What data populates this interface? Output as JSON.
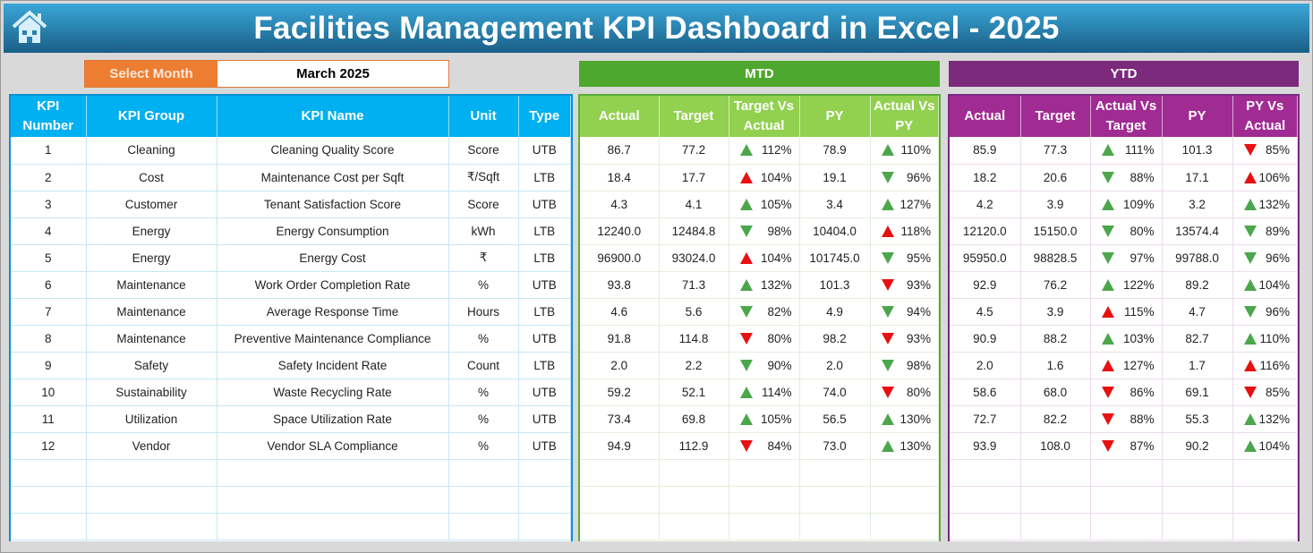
{
  "header": {
    "title": "Facilities Management KPI Dashboard in Excel - 2025",
    "home_icon": "home-icon"
  },
  "selector": {
    "label": "Select Month",
    "value": "March 2025"
  },
  "sections": {
    "mtd": "MTD",
    "ytd": "YTD"
  },
  "colors": {
    "kpi_header": "#00b0f0",
    "mtd": "#92d050",
    "mtd_band": "#4ea72e",
    "ytd": "#a02b93",
    "ytd_band": "#7b2a7c",
    "select": "#ed7d31",
    "good": "#4ca64c",
    "bad": "#e81010"
  },
  "columns": {
    "kpi": [
      "KPI Number",
      "KPI Group",
      "KPI Name",
      "Unit",
      "Type"
    ],
    "mtd": [
      "Actual",
      "Target",
      "Target Vs Actual",
      "PY",
      "Actual Vs PY"
    ],
    "ytd": [
      "Actual",
      "Target",
      "Actual Vs Target",
      "PY",
      "PY Vs Actual"
    ]
  },
  "rows": [
    {
      "num": "1",
      "group": "Cleaning",
      "name": "Cleaning Quality Score",
      "unit": "Score",
      "type": "UTB",
      "mtd": {
        "actual": "86.7",
        "target": "77.2",
        "tva": {
          "v": "112%",
          "arrow": "up",
          "status": "good"
        },
        "py": "78.9",
        "avp": {
          "v": "110%",
          "arrow": "up",
          "status": "good"
        }
      },
      "ytd": {
        "actual": "85.9",
        "target": "77.3",
        "avt": {
          "v": "111%",
          "arrow": "up",
          "status": "good"
        },
        "py": "101.3",
        "pva": {
          "v": "85%",
          "arrow": "down",
          "status": "bad"
        }
      }
    },
    {
      "num": "2",
      "group": "Cost",
      "name": "Maintenance Cost per Sqft",
      "unit": "₹/Sqft",
      "type": "LTB",
      "mtd": {
        "actual": "18.4",
        "target": "17.7",
        "tva": {
          "v": "104%",
          "arrow": "up",
          "status": "bad"
        },
        "py": "19.1",
        "avp": {
          "v": "96%",
          "arrow": "down",
          "status": "good"
        }
      },
      "ytd": {
        "actual": "18.2",
        "target": "20.6",
        "avt": {
          "v": "88%",
          "arrow": "down",
          "status": "good"
        },
        "py": "17.1",
        "pva": {
          "v": "106%",
          "arrow": "up",
          "status": "bad"
        }
      }
    },
    {
      "num": "3",
      "group": "Customer",
      "name": "Tenant Satisfaction Score",
      "unit": "Score",
      "type": "UTB",
      "mtd": {
        "actual": "4.3",
        "target": "4.1",
        "tva": {
          "v": "105%",
          "arrow": "up",
          "status": "good"
        },
        "py": "3.4",
        "avp": {
          "v": "127%",
          "arrow": "up",
          "status": "good"
        }
      },
      "ytd": {
        "actual": "4.2",
        "target": "3.9",
        "avt": {
          "v": "109%",
          "arrow": "up",
          "status": "good"
        },
        "py": "3.2",
        "pva": {
          "v": "132%",
          "arrow": "up",
          "status": "good"
        }
      }
    },
    {
      "num": "4",
      "group": "Energy",
      "name": "Energy Consumption",
      "unit": "kWh",
      "type": "LTB",
      "mtd": {
        "actual": "12240.0",
        "target": "12484.8",
        "tva": {
          "v": "98%",
          "arrow": "down",
          "status": "good"
        },
        "py": "10404.0",
        "avp": {
          "v": "118%",
          "arrow": "up",
          "status": "bad"
        }
      },
      "ytd": {
        "actual": "12120.0",
        "target": "15150.0",
        "avt": {
          "v": "80%",
          "arrow": "down",
          "status": "good"
        },
        "py": "13574.4",
        "pva": {
          "v": "89%",
          "arrow": "down",
          "status": "good"
        }
      }
    },
    {
      "num": "5",
      "group": "Energy",
      "name": "Energy Cost",
      "unit": "₹",
      "type": "LTB",
      "mtd": {
        "actual": "96900.0",
        "target": "93024.0",
        "tva": {
          "v": "104%",
          "arrow": "up",
          "status": "bad"
        },
        "py": "101745.0",
        "avp": {
          "v": "95%",
          "arrow": "down",
          "status": "good"
        }
      },
      "ytd": {
        "actual": "95950.0",
        "target": "98828.5",
        "avt": {
          "v": "97%",
          "arrow": "down",
          "status": "good"
        },
        "py": "99788.0",
        "pva": {
          "v": "96%",
          "arrow": "down",
          "status": "good"
        }
      }
    },
    {
      "num": "6",
      "group": "Maintenance",
      "name": "Work Order Completion Rate",
      "unit": "%",
      "type": "UTB",
      "mtd": {
        "actual": "93.8",
        "target": "71.3",
        "tva": {
          "v": "132%",
          "arrow": "up",
          "status": "good"
        },
        "py": "101.3",
        "avp": {
          "v": "93%",
          "arrow": "down",
          "status": "bad"
        }
      },
      "ytd": {
        "actual": "92.9",
        "target": "76.2",
        "avt": {
          "v": "122%",
          "arrow": "up",
          "status": "good"
        },
        "py": "89.2",
        "pva": {
          "v": "104%",
          "arrow": "up",
          "status": "good"
        }
      }
    },
    {
      "num": "7",
      "group": "Maintenance",
      "name": "Average Response Time",
      "unit": "Hours",
      "type": "LTB",
      "mtd": {
        "actual": "4.6",
        "target": "5.6",
        "tva": {
          "v": "82%",
          "arrow": "down",
          "status": "good"
        },
        "py": "4.9",
        "avp": {
          "v": "94%",
          "arrow": "down",
          "status": "good"
        }
      },
      "ytd": {
        "actual": "4.5",
        "target": "3.9",
        "avt": {
          "v": "115%",
          "arrow": "up",
          "status": "bad"
        },
        "py": "4.7",
        "pva": {
          "v": "96%",
          "arrow": "down",
          "status": "good"
        }
      }
    },
    {
      "num": "8",
      "group": "Maintenance",
      "name": "Preventive Maintenance Compliance",
      "unit": "%",
      "type": "UTB",
      "mtd": {
        "actual": "91.8",
        "target": "114.8",
        "tva": {
          "v": "80%",
          "arrow": "down",
          "status": "bad"
        },
        "py": "98.2",
        "avp": {
          "v": "93%",
          "arrow": "down",
          "status": "bad"
        }
      },
      "ytd": {
        "actual": "90.9",
        "target": "88.2",
        "avt": {
          "v": "103%",
          "arrow": "up",
          "status": "good"
        },
        "py": "82.7",
        "pva": {
          "v": "110%",
          "arrow": "up",
          "status": "good"
        }
      }
    },
    {
      "num": "9",
      "group": "Safety",
      "name": "Safety Incident Rate",
      "unit": "Count",
      "type": "LTB",
      "mtd": {
        "actual": "2.0",
        "target": "2.2",
        "tva": {
          "v": "90%",
          "arrow": "down",
          "status": "good"
        },
        "py": "2.0",
        "avp": {
          "v": "98%",
          "arrow": "down",
          "status": "good"
        }
      },
      "ytd": {
        "actual": "2.0",
        "target": "1.6",
        "avt": {
          "v": "127%",
          "arrow": "up",
          "status": "bad"
        },
        "py": "1.7",
        "pva": {
          "v": "116%",
          "arrow": "up",
          "status": "bad"
        }
      }
    },
    {
      "num": "10",
      "group": "Sustainability",
      "name": "Waste Recycling Rate",
      "unit": "%",
      "type": "UTB",
      "mtd": {
        "actual": "59.2",
        "target": "52.1",
        "tva": {
          "v": "114%",
          "arrow": "up",
          "status": "good"
        },
        "py": "74.0",
        "avp": {
          "v": "80%",
          "arrow": "down",
          "status": "bad"
        }
      },
      "ytd": {
        "actual": "58.6",
        "target": "68.0",
        "avt": {
          "v": "86%",
          "arrow": "down",
          "status": "bad"
        },
        "py": "69.1",
        "pva": {
          "v": "85%",
          "arrow": "down",
          "status": "bad"
        }
      }
    },
    {
      "num": "11",
      "group": "Utilization",
      "name": "Space Utilization Rate",
      "unit": "%",
      "type": "UTB",
      "mtd": {
        "actual": "73.4",
        "target": "69.8",
        "tva": {
          "v": "105%",
          "arrow": "up",
          "status": "good"
        },
        "py": "56.5",
        "avp": {
          "v": "130%",
          "arrow": "up",
          "status": "good"
        }
      },
      "ytd": {
        "actual": "72.7",
        "target": "82.2",
        "avt": {
          "v": "88%",
          "arrow": "down",
          "status": "bad"
        },
        "py": "55.3",
        "pva": {
          "v": "132%",
          "arrow": "up",
          "status": "good"
        }
      }
    },
    {
      "num": "12",
      "group": "Vendor",
      "name": "Vendor SLA Compliance",
      "unit": "%",
      "type": "UTB",
      "mtd": {
        "actual": "94.9",
        "target": "112.9",
        "tva": {
          "v": "84%",
          "arrow": "down",
          "status": "bad"
        },
        "py": "73.0",
        "avp": {
          "v": "130%",
          "arrow": "up",
          "status": "good"
        }
      },
      "ytd": {
        "actual": "93.9",
        "target": "108.0",
        "avt": {
          "v": "87%",
          "arrow": "down",
          "status": "bad"
        },
        "py": "90.2",
        "pva": {
          "v": "104%",
          "arrow": "up",
          "status": "good"
        }
      }
    }
  ]
}
